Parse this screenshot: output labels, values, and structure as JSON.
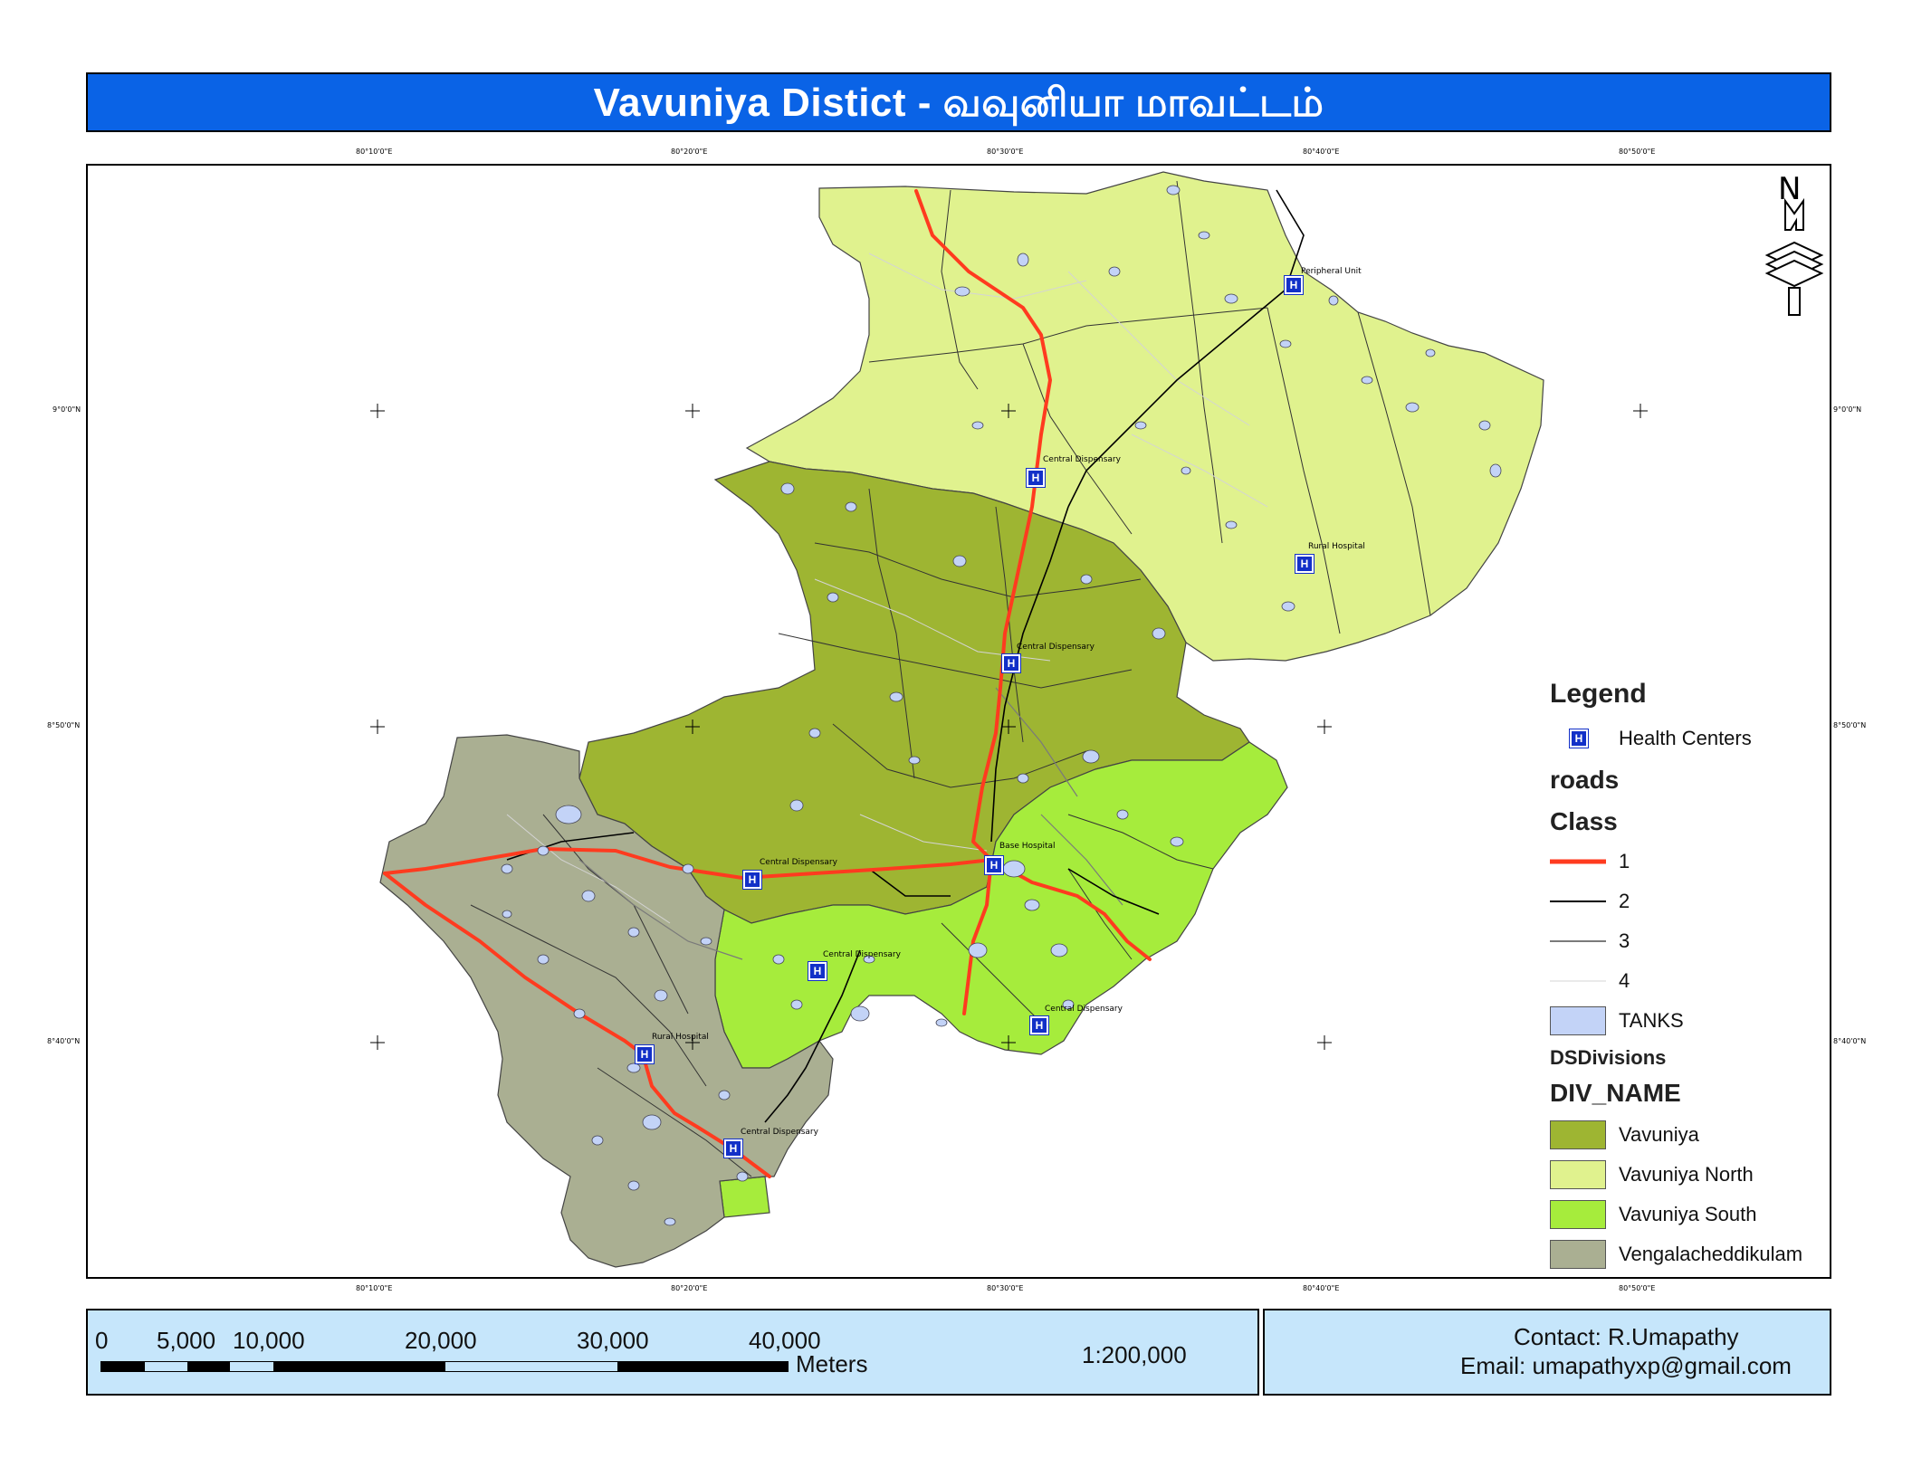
{
  "title": "Vavuniya Distict - வவுனியா      மாவட்டம்",
  "graticule": {
    "top_ticks": [
      "80°10'0\"E",
      "80°20'0\"E",
      "80°30'0\"E",
      "80°40'0\"E",
      "80°50'0\"E"
    ],
    "bottom_ticks": [
      "80°10'0\"E",
      "80°20'0\"E",
      "80°30'0\"E",
      "80°40'0\"E",
      "80°50'0\"E"
    ],
    "left_ticks": [
      "9°0'0\"N",
      "8°50'0\"N",
      "8°40'0\"N"
    ],
    "right_ticks": [
      "9°0'0\"N",
      "8°50'0\"N",
      "8°40'0\"N"
    ]
  },
  "health_centers": [
    {
      "label": "Peripheral Unit"
    },
    {
      "label": "Central Dispensary"
    },
    {
      "label": "Rural Hospital"
    },
    {
      "label": "Central Dispensary"
    },
    {
      "label": "Base Hospital"
    },
    {
      "label": "Central Dispensary"
    },
    {
      "label": "Central Dispensary"
    },
    {
      "label": "Central Dispensary"
    },
    {
      "label": "Rural Hospital"
    },
    {
      "label": "Central Dispensary"
    }
  ],
  "hc_symbol": "H",
  "north_arrow": "N",
  "legend": {
    "title": "Legend",
    "health_centers_label": "Health Centers",
    "roads_label": "roads",
    "class_label": "Class",
    "road_classes": [
      {
        "label": "1",
        "color": "#ff3b1f"
      },
      {
        "label": "2",
        "color": "#000000"
      },
      {
        "label": "3",
        "color": "#7a7a7a"
      },
      {
        "label": "4",
        "color": "#d8d8d8"
      }
    ],
    "tanks_label": "TANKS",
    "tanks_color": "#c3d3f7",
    "dsdivisions_label": "DSDivisions",
    "divname_label": "DIV_NAME",
    "divisions": [
      {
        "label": "Vavuniya",
        "color": "#9eb532"
      },
      {
        "label": "Vavuniya North",
        "color": "#e0f28e"
      },
      {
        "label": "Vavuniya South",
        "color": "#a6ec3c"
      },
      {
        "label": "Vengalacheddikulam",
        "color": "#aaaf92"
      }
    ]
  },
  "scale_bar": {
    "labels": [
      "0",
      "5,000",
      "10,000",
      "20,000",
      "30,000",
      "40,000"
    ],
    "units": "Meters",
    "ratio": "1:200,000"
  },
  "contact": {
    "line1": "Contact: R.Umapathy",
    "line2": "Email: umapathyxp@gmail.com"
  }
}
